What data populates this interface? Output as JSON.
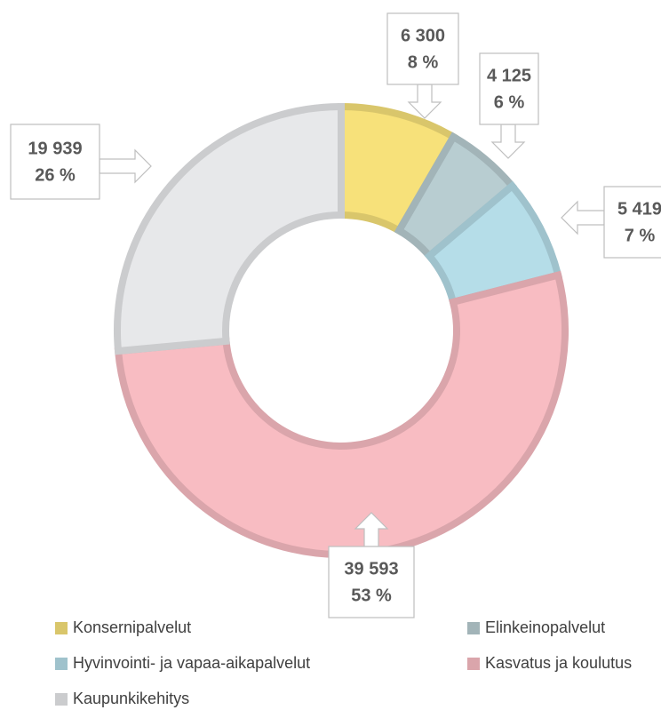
{
  "chart_data": {
    "type": "donut",
    "categories": [
      "Konsernipalvelut",
      "Elinkeinopalvelut",
      "Hyvinvointi- ja vapaa-aikapalvelut",
      "Kasvatus ja koulutus",
      "Kaupunkikehitys"
    ],
    "values": [
      6300,
      4125,
      5419,
      39593,
      19939
    ],
    "value_labels": [
      "6 300",
      "4 125",
      "5 419",
      "39 593",
      "19 939"
    ],
    "percent_labels": [
      "8 %",
      "6 %",
      "7 %",
      "53 %",
      "26 %"
    ],
    "colors": [
      "#f7e17a",
      "#b8cdd1",
      "#b5dde8",
      "#f8bcc2",
      "#e7e8ea"
    ],
    "legend": "bottom"
  }
}
